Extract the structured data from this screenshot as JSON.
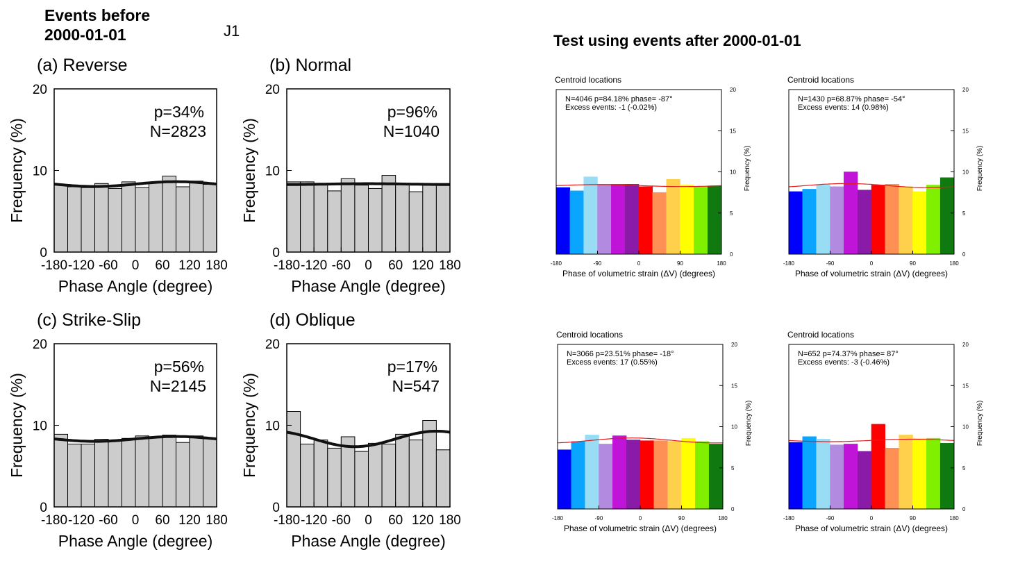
{
  "left_title": [
    "Events before",
    "2000-01-01"
  ],
  "j_label": "J1",
  "right_title": "Test using events after 2000-01-01",
  "colors": {
    "left_bar_fill": "#cccccc",
    "fit_curve_left": "#111111",
    "fit_curve_right": "#e41a1c",
    "right_bars": [
      "#0000ff",
      "#0aa5ff",
      "#99ddf5",
      "#b28be0",
      "#c015d8",
      "#8a1aa8",
      "#ff0000",
      "#ff9055",
      "#ffd04c",
      "#ffff00",
      "#80f000",
      "#107a10"
    ]
  },
  "chart_data": [
    {
      "type": "bar",
      "panel_title": "(a) Reverse",
      "stats": [
        "p=34%",
        "N=2823"
      ],
      "xlabel": "Phase Angle (degree)",
      "ylabel": "Frequency (%)",
      "xlim": [
        -180,
        180
      ],
      "ylim": [
        0,
        20
      ],
      "xticks": [
        "-180",
        "-120",
        "-60",
        "0",
        "60",
        "120",
        "180"
      ],
      "yticks": [
        "0",
        "10",
        "20"
      ],
      "bin_width": 30,
      "values": [
        8.2,
        8.0,
        7.9,
        8.4,
        7.8,
        8.6,
        7.9,
        8.5,
        9.3,
        8.0,
        8.7,
        8.3
      ],
      "fit": {
        "mean": 8.33,
        "amplitude": 0.3,
        "phase": 90
      }
    },
    {
      "type": "bar",
      "panel_title": "(b) Normal",
      "stats": [
        "p=96%",
        "N=1040"
      ],
      "xlabel": "Phase Angle (degree)",
      "ylabel": "Frequency (%)",
      "xlim": [
        -180,
        180
      ],
      "ylim": [
        0,
        20
      ],
      "xticks": [
        "-180",
        "-120",
        "-60",
        "0",
        "60",
        "120",
        "180"
      ],
      "yticks": [
        "0",
        "10",
        "20"
      ],
      "bin_width": 30,
      "values": [
        8.6,
        8.6,
        8.3,
        7.5,
        9.0,
        8.2,
        7.8,
        9.4,
        8.3,
        7.4,
        8.3,
        8.4
      ],
      "fit": {
        "mean": 8.33,
        "amplitude": 0.05,
        "phase": 0
      }
    },
    {
      "type": "bar",
      "panel_title": "(c) Strike-Slip",
      "stats": [
        "p=56%",
        "N=2145"
      ],
      "xlabel": "Phase Angle (degree)",
      "ylabel": "Frequency (%)",
      "xlim": [
        -180,
        180
      ],
      "ylim": [
        0,
        20
      ],
      "xticks": [
        "-180",
        "-120",
        "-60",
        "0",
        "60",
        "120",
        "180"
      ],
      "yticks": [
        "0",
        "10",
        "20"
      ],
      "bin_width": 30,
      "values": [
        8.9,
        7.7,
        7.7,
        8.3,
        8.1,
        8.4,
        8.7,
        8.5,
        8.8,
        7.9,
        8.7,
        8.4
      ],
      "fit": {
        "mean": 8.33,
        "amplitude": 0.3,
        "phase": 90
      }
    },
    {
      "type": "bar",
      "panel_title": "(d) Oblique",
      "stats": [
        "p=17%",
        "N=547"
      ],
      "xlabel": "Phase Angle (degree)",
      "ylabel": "Frequency (%)",
      "xlim": [
        -180,
        180
      ],
      "ylim": [
        0,
        20
      ],
      "xticks": [
        "-180",
        "-120",
        "-60",
        "0",
        "60",
        "120",
        "180"
      ],
      "yticks": [
        "0",
        "10",
        "20"
      ],
      "bin_width": 30,
      "values": [
        11.7,
        7.7,
        8.2,
        7.2,
        8.6,
        6.8,
        7.8,
        7.7,
        8.9,
        8.2,
        10.6,
        7.0
      ],
      "fit": {
        "mean": 8.33,
        "amplitude": 0.95,
        "phase": 150
      }
    },
    {
      "type": "bar",
      "panel_title": "Centroid locations",
      "stats": [
        "N=4046   p=84.18%   phase= -87°",
        "Excess events: -1 (-0.02%)"
      ],
      "xlabel": "Phase of volumetric strain (ΔV) (degrees)",
      "ylabel": "Frequency (%)",
      "xlim": [
        -180,
        180
      ],
      "ylim": [
        0,
        20
      ],
      "xticks": [
        "-180",
        "-90",
        "0",
        "90",
        "180"
      ],
      "yticks": [
        "0",
        "5",
        "10",
        "15",
        "20"
      ],
      "bin_width": 30,
      "values": [
        8.1,
        7.7,
        9.4,
        8.5,
        8.5,
        8.5,
        8.2,
        7.5,
        9.1,
        8.4,
        8.2,
        8.3
      ],
      "fit": {
        "mean": 8.33,
        "amplitude": 0.12,
        "phase": -87
      }
    },
    {
      "type": "bar",
      "panel_title": "Centroid locations",
      "stats": [
        "N=1430   p=68.87%   phase= -54°",
        "Excess events: 14 (0.98%)"
      ],
      "xlabel": "Phase of volumetric strain (ΔV) (degrees)",
      "ylabel": "Frequency (%)",
      "xlim": [
        -180,
        180
      ],
      "ylim": [
        0,
        20
      ],
      "xticks": [
        "-180",
        "-90",
        "0",
        "90",
        "180"
      ],
      "yticks": [
        "0",
        "5",
        "10",
        "15",
        "20"
      ],
      "bin_width": 30,
      "values": [
        7.6,
        7.9,
        8.4,
        8.2,
        10.0,
        7.8,
        8.4,
        8.5,
        8.2,
        7.6,
        8.4,
        9.3
      ],
      "fit": {
        "mean": 8.33,
        "amplitude": 0.25,
        "phase": -54
      }
    },
    {
      "type": "bar",
      "panel_title": "Centroid locations",
      "stats": [
        "N=3066   p=23.51%   phase= -18°",
        "Excess events: 17 (0.55%)"
      ],
      "xlabel": "Phase of volumetric strain (ΔV) (degrees)",
      "ylabel": "Frequency (%)",
      "xlim": [
        -180,
        180
      ],
      "ylim": [
        0,
        20
      ],
      "xticks": [
        "-180",
        "-90",
        "0",
        "90",
        "180"
      ],
      "yticks": [
        "0",
        "5",
        "10",
        "15",
        "20"
      ],
      "bin_width": 30,
      "values": [
        7.2,
        8.2,
        9.0,
        7.9,
        8.9,
        8.4,
        8.3,
        8.3,
        8.2,
        8.6,
        8.2,
        7.9
      ],
      "fit": {
        "mean": 8.33,
        "amplitude": 0.3,
        "phase": -18
      }
    },
    {
      "type": "bar",
      "panel_title": "Centroid locations",
      "stats": [
        "N=652   p=74.37%   phase= 87°",
        "Excess events: -3 (-0.46%)"
      ],
      "xlabel": "Phase of volumetric strain (ΔV) (degrees)",
      "ylabel": "Frequency (%)",
      "xlim": [
        -180,
        180
      ],
      "ylim": [
        0,
        20
      ],
      "xticks": [
        "-180",
        "-90",
        "0",
        "90",
        "180"
      ],
      "yticks": [
        "0",
        "5",
        "10",
        "15",
        "20"
      ],
      "bin_width": 30,
      "values": [
        8.1,
        8.8,
        8.5,
        7.8,
        7.9,
        7.0,
        10.3,
        7.4,
        9.0,
        8.6,
        8.6,
        8.0
      ],
      "fit": {
        "mean": 8.33,
        "amplitude": 0.15,
        "phase": 87
      }
    }
  ]
}
